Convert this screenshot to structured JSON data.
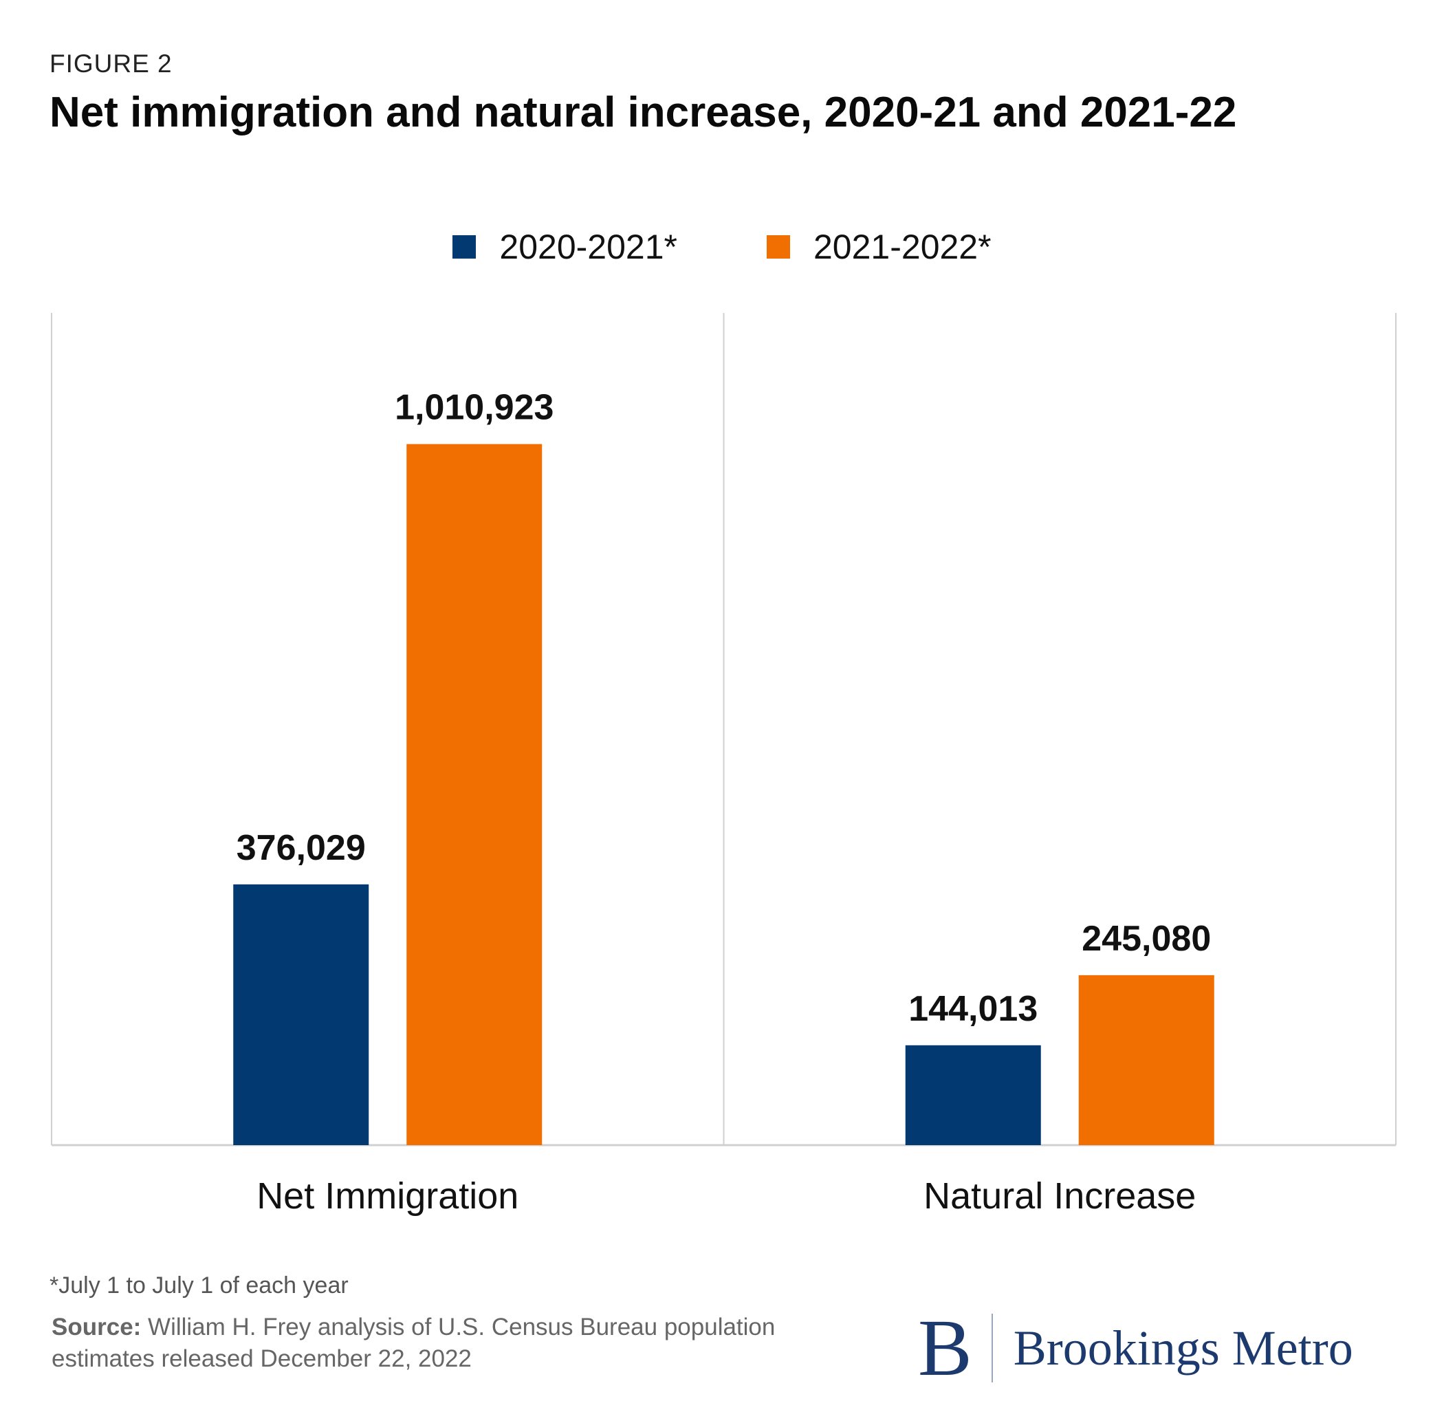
{
  "figure_label": "FIGURE 2",
  "colors": {
    "series1": "#023970",
    "series2": "#f06f00",
    "axis": "#d0d0d0"
  },
  "chart_data": {
    "type": "bar",
    "title": "Net immigration and natural increase, 2020-21 and 2021-22",
    "categories": [
      "Net Immigration",
      "Natural Increase"
    ],
    "series": [
      {
        "name": "2020-2021*",
        "values": [
          376029,
          144013
        ],
        "labels": [
          "376,029",
          "144,013"
        ]
      },
      {
        "name": "2021-2022*",
        "values": [
          1010923,
          245080
        ],
        "labels": [
          "1,010,923",
          "245,080"
        ]
      }
    ],
    "ylim": [
      0,
      1200000
    ],
    "xlabel": "",
    "ylabel": "",
    "legend": "top-center",
    "grid": false
  },
  "footnote": "*July 1 to July 1 of each year",
  "source": {
    "label": "Source:",
    "text": " William H. Frey analysis of U.S. Census Bureau population estimates released December 22, 2022"
  },
  "logo": {
    "mark": "B",
    "text": "Brookings Metro"
  }
}
